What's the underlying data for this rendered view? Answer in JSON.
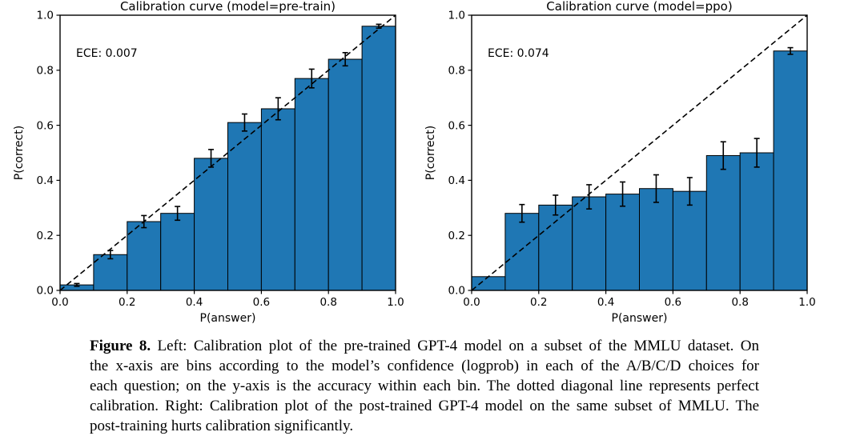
{
  "colors": {
    "bar_fill": "#1f77b4",
    "bar_edge": "#000000",
    "axis": "#000000",
    "text": "#000000",
    "background": "#ffffff"
  },
  "chart_data": [
    {
      "type": "bar",
      "title": "Calibration curve (model=pre-train)",
      "annotation": "ECE: 0.007",
      "xlabel": "P(answer)",
      "ylabel": "P(correct)",
      "xlim": [
        0,
        1
      ],
      "ylim": [
        0,
        1
      ],
      "xticks": [
        "0.0",
        "0.2",
        "0.4",
        "0.6",
        "0.8",
        "1.0"
      ],
      "yticks": [
        "0.0",
        "0.2",
        "0.4",
        "0.6",
        "0.8",
        "1.0"
      ],
      "bin_width": 0.1,
      "bin_centers": [
        0.05,
        0.15,
        0.25,
        0.35,
        0.45,
        0.55,
        0.65,
        0.75,
        0.85,
        0.95
      ],
      "values": [
        0.02,
        0.13,
        0.25,
        0.28,
        0.48,
        0.61,
        0.66,
        0.77,
        0.84,
        0.96
      ],
      "errors": [
        0.005,
        0.015,
        0.022,
        0.025,
        0.032,
        0.031,
        0.04,
        0.034,
        0.024,
        0.007
      ],
      "diagonal": {
        "from": [
          0,
          0
        ],
        "to": [
          1,
          1
        ],
        "style": "dashed"
      },
      "bar_color": "#1f77b4",
      "bar_edge_color": "#000000",
      "grid": "off",
      "legend": "none"
    },
    {
      "type": "bar",
      "title": "Calibration curve (model=ppo)",
      "annotation": "ECE: 0.074",
      "xlabel": "P(answer)",
      "ylabel": "P(correct)",
      "xlim": [
        0,
        1
      ],
      "ylim": [
        0,
        1
      ],
      "xticks": [
        "0.0",
        "0.2",
        "0.4",
        "0.6",
        "0.8",
        "1.0"
      ],
      "yticks": [
        "0.0",
        "0.2",
        "0.4",
        "0.6",
        "0.8",
        "1.0"
      ],
      "bin_width": 0.1,
      "bin_centers": [
        0.05,
        0.15,
        0.25,
        0.35,
        0.45,
        0.55,
        0.65,
        0.75,
        0.85,
        0.95
      ],
      "values": [
        0.05,
        0.28,
        0.31,
        0.34,
        0.35,
        0.37,
        0.36,
        0.49,
        0.5,
        0.87
      ],
      "errors": [
        0,
        0.032,
        0.036,
        0.044,
        0.044,
        0.05,
        0.05,
        0.05,
        0.052,
        0.012
      ],
      "diagonal": {
        "from": [
          0,
          0
        ],
        "to": [
          1,
          1
        ],
        "style": "dashed"
      },
      "bar_color": "#1f77b4",
      "bar_edge_color": "#000000",
      "grid": "off",
      "legend": "none"
    }
  ],
  "caption": {
    "label": "Figure 8.",
    "lines": [
      " Left: Calibration plot of the pre-trained GPT-4 model on a subset of the MMLU dataset. On",
      "the x-axis are bins according to the model’s confidence (logprob) in each of the A/B/C/D choices for",
      "each question; on the y-axis is the accuracy within each bin. The dotted diagonal line represents perfect",
      "calibration. Right: Calibration plot of the post-trained GPT-4 model on the same subset of MMLU. The",
      "post-training hurts calibration significantly."
    ]
  }
}
